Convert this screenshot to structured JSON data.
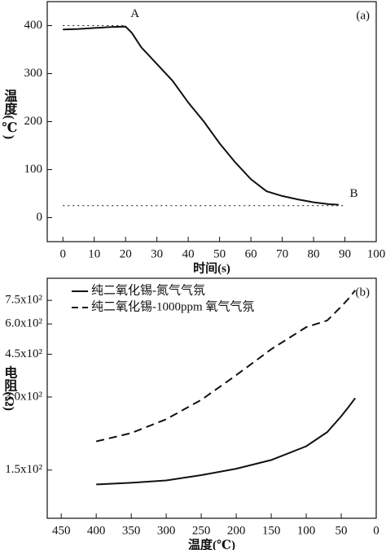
{
  "chart_data": [
    {
      "type": "line",
      "panel_label": "(a)",
      "x_label": "时间(s)",
      "y_label": "温度(℃)",
      "x": [
        0,
        5,
        10,
        15,
        20,
        22,
        25,
        30,
        35,
        40,
        45,
        50,
        55,
        60,
        65,
        70,
        75,
        80,
        85,
        88
      ],
      "values": [
        392,
        393,
        395,
        397,
        398,
        385,
        355,
        320,
        285,
        240,
        200,
        155,
        115,
        80,
        55,
        45,
        38,
        32,
        28,
        27
      ],
      "color": "#111111",
      "xlim": [
        -5,
        100
      ],
      "xticks": [
        0,
        10,
        20,
        30,
        40,
        50,
        60,
        70,
        80,
        90,
        100
      ],
      "ylim": [
        -50,
        450
      ],
      "yticks": [
        0,
        100,
        200,
        300,
        400
      ],
      "hlines": [
        {
          "value": 400,
          "xlim": [
            0,
            20
          ]
        },
        {
          "value": 25,
          "xlim": [
            0,
            90
          ]
        }
      ],
      "annotations": [
        {
          "text": "A",
          "x": 20,
          "y": 400
        },
        {
          "text": "B",
          "x": 90,
          "y": 25
        }
      ]
    },
    {
      "type": "line",
      "panel_label": "(b)",
      "x_label": "温度(℃)",
      "y_label": "电阻(Ω)",
      "x": [
        400,
        350,
        300,
        250,
        200,
        150,
        100,
        70,
        50,
        40,
        30
      ],
      "series": [
        {
          "name": "纯二氧化锡-氮气气氛",
          "color": "#111111",
          "dash": "solid",
          "values": [
            131,
            133,
            136,
            143,
            152,
            165,
            188,
            215,
            250,
            272,
            297
          ]
        },
        {
          "name": "纯二氧化锡-1000ppm 氧气气氛",
          "color": "#111111",
          "dash": "dashed",
          "values": [
            197,
            213,
            243,
            292,
            369,
            472,
            582,
            620,
            707,
            760,
            825
          ]
        }
      ],
      "legend": "upper left",
      "log_y": true,
      "xlim": [
        470,
        0
      ],
      "xticks": [
        450,
        400,
        350,
        300,
        250,
        200,
        150,
        100,
        50,
        0
      ],
      "ylim": [
        95,
        925
      ],
      "yticks": [
        {
          "value": 150,
          "label": "1.5x10²"
        },
        {
          "value": 300,
          "label": "3.0x10²"
        },
        {
          "value": 450,
          "label": "4.5x10²"
        },
        {
          "value": 600,
          "label": "6.0x10²"
        },
        {
          "value": 750,
          "label": "7.5x10²"
        }
      ]
    }
  ]
}
